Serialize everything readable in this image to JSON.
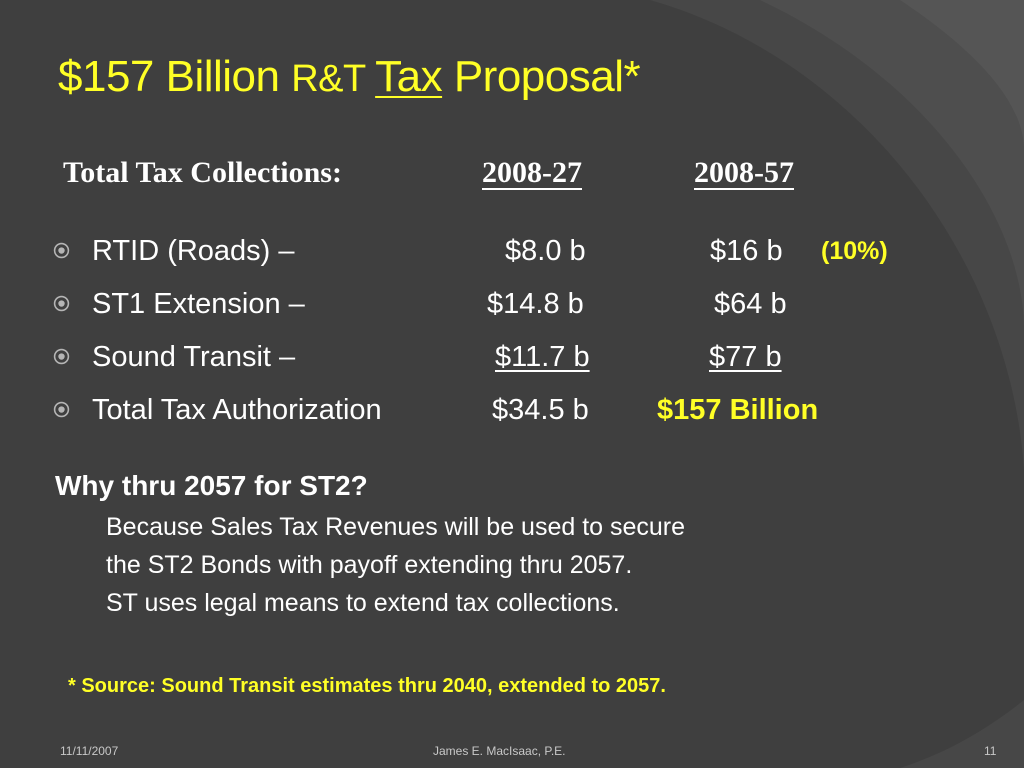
{
  "slide": {
    "title_part1": "$157 Billion ",
    "title_part2": "R&T ",
    "title_part3": "Tax",
    "title_part4": " Proposal*",
    "header": {
      "label": "Total Tax Collections:",
      "col1": "2008-27",
      "col2": "2008-57"
    },
    "rows": [
      {
        "label": "RTID (Roads) –",
        "v1": "$8.0 b",
        "v2": "$16 b",
        "note": "(10%)"
      },
      {
        "label": "ST1 Extension –",
        "v1": "$14.8 b",
        "v2": "$64 b"
      },
      {
        "label": "Sound Transit –",
        "v1": "$11.7 b",
        "v2": "$77 b"
      },
      {
        "label": "Total Tax Authorization",
        "v1": "$34.5 b",
        "v2": "$157 Billion"
      }
    ],
    "why": {
      "question": "Why thru 2057 for ST2?",
      "lines": [
        "Because Sales Tax Revenues will be used to secure",
        "the ST2 Bonds with payoff extending thru 2057.",
        "ST uses legal means to extend tax collections."
      ]
    },
    "source_note": "* Source:  Sound Transit estimates thru 2040, extended to 2057.",
    "footer": {
      "date": "11/11/2007",
      "author": "James E. MacIsaac, P.E.",
      "page": "11"
    }
  },
  "colors": {
    "background": "#3f3f3f",
    "accent": "#ffff26",
    "text": "#ffffff"
  },
  "icons": {
    "bullet": "circled-dot-bullet-icon"
  }
}
